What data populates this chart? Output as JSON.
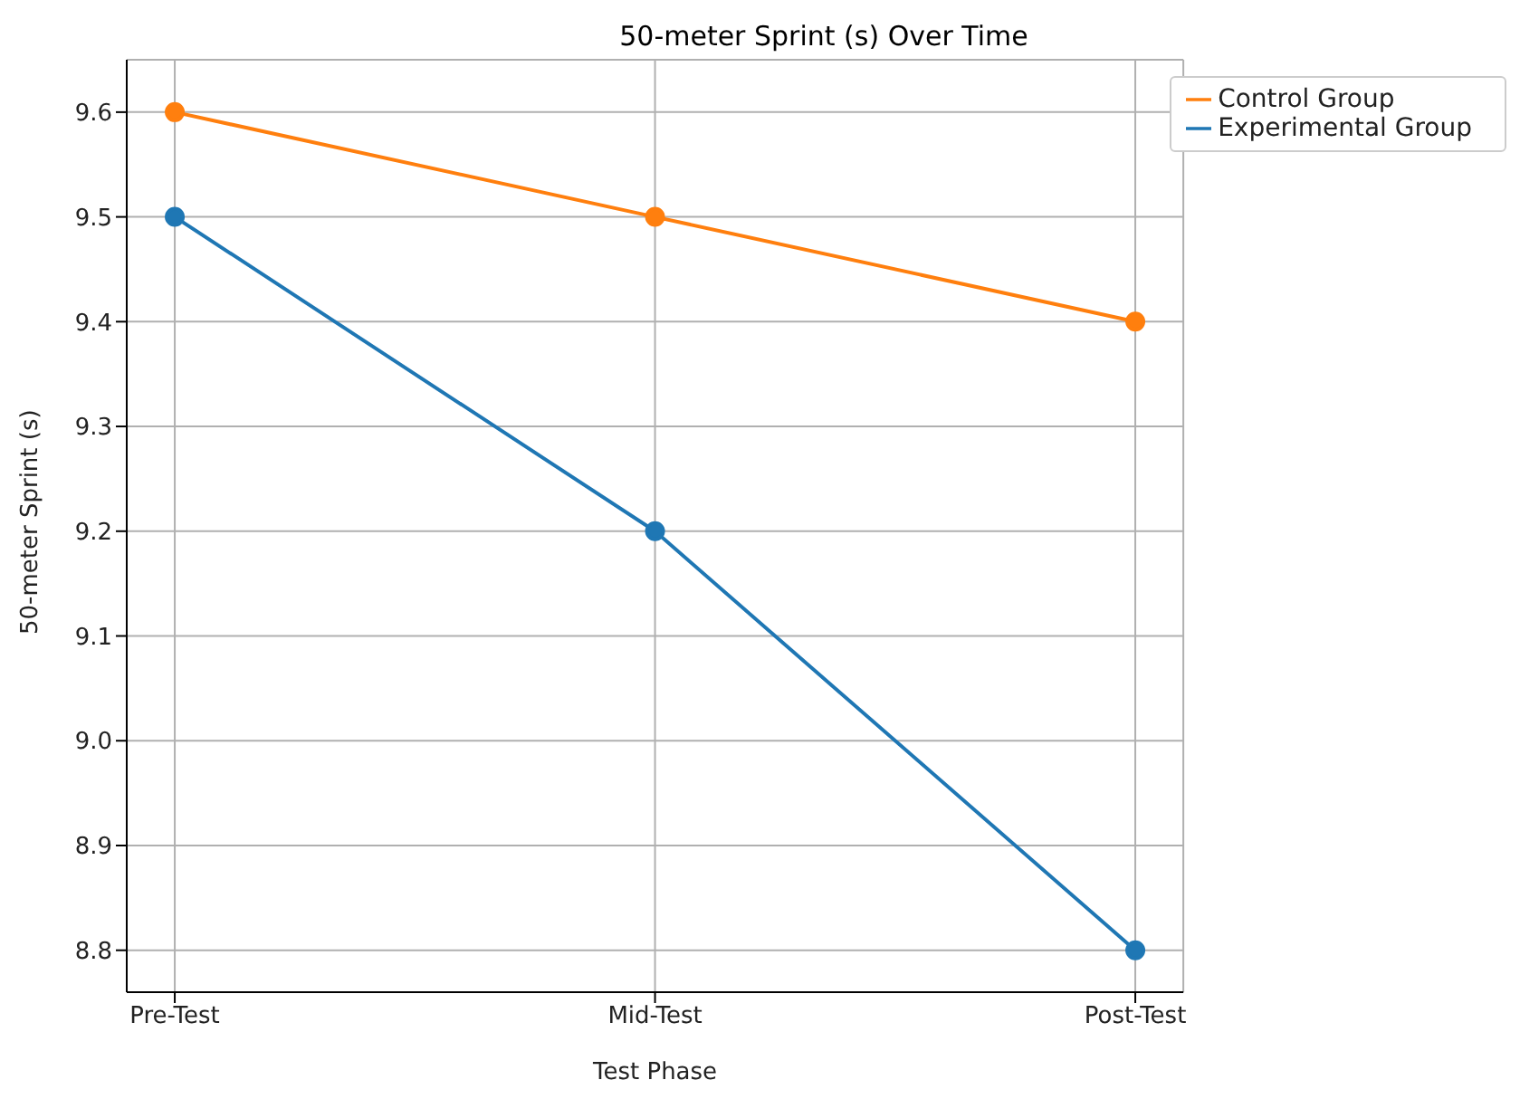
{
  "chart_data": {
    "type": "line",
    "title": "50-meter Sprint (s) Over Time",
    "xlabel": "Test Phase",
    "ylabel": "50-meter Sprint (s)",
    "categories": [
      "Pre-Test",
      "Mid-Test",
      "Post-Test"
    ],
    "series": [
      {
        "name": "Experimental Group",
        "color": "#1f77b4",
        "values": [
          9.5,
          9.2,
          8.8
        ]
      },
      {
        "name": "Control Group",
        "color": "#ff7f0e",
        "values": [
          9.6,
          9.5,
          9.4
        ]
      }
    ],
    "ylim": [
      8.76,
      9.65
    ],
    "yticks": [
      {
        "value": 8.8,
        "label": "8.8"
      },
      {
        "value": 8.9,
        "label": "8.9"
      },
      {
        "value": 9.0,
        "label": "9.0"
      },
      {
        "value": 9.1,
        "label": "9.1"
      },
      {
        "value": 9.2,
        "label": "9.2"
      },
      {
        "value": 9.3,
        "label": "9.3"
      },
      {
        "value": 9.4,
        "label": "9.4"
      },
      {
        "value": 9.5,
        "label": "9.5"
      },
      {
        "value": 9.6,
        "label": "9.6"
      }
    ],
    "grid": true,
    "legend": "top right",
    "marker": "circle",
    "line_style": "solid"
  }
}
